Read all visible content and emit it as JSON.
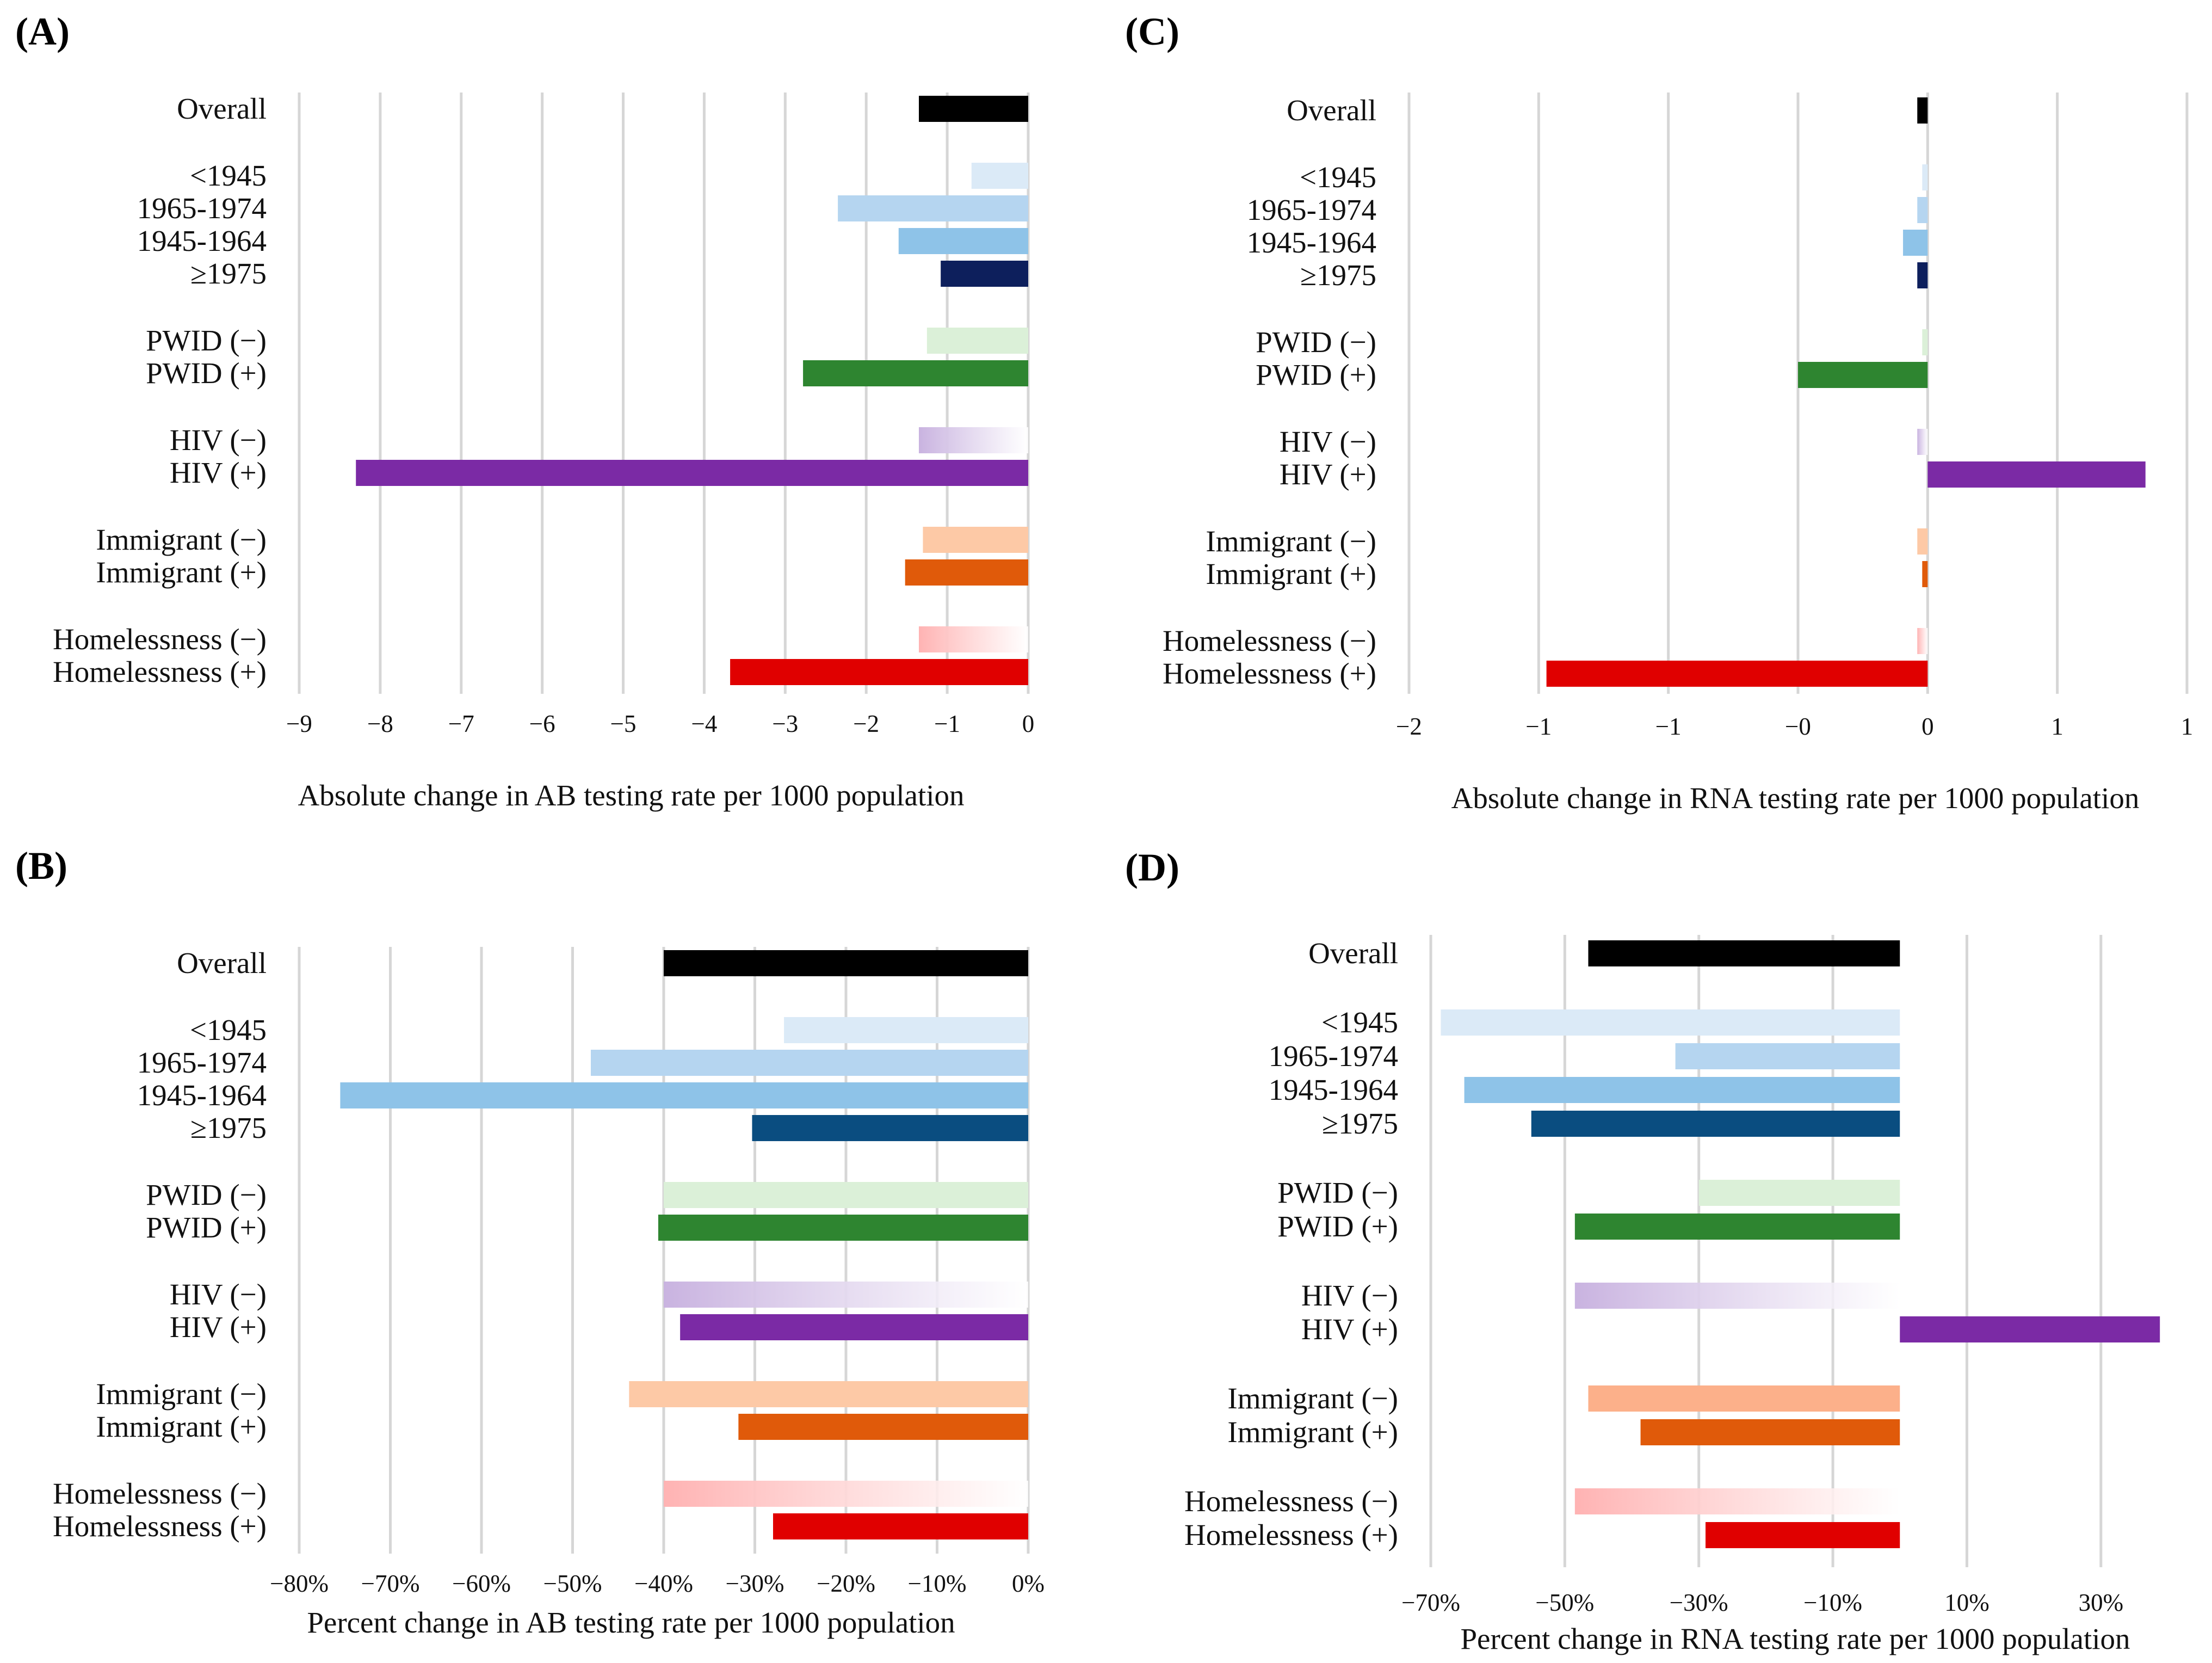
{
  "figure": {
    "panels": [
      {
        "id": "A",
        "label": "(A)"
      },
      {
        "id": "B",
        "label": "(B)"
      },
      {
        "id": "C",
        "label": "(C)"
      },
      {
        "id": "D",
        "label": "(D)"
      }
    ]
  },
  "chart_data": [
    {
      "panel": "A",
      "type": "bar",
      "orientation": "horizontal",
      "xlabel": "Absolute change in AB testing rate per 1000 population",
      "xlim": [
        -9,
        0
      ],
      "ticks": [
        -9,
        -8,
        -7,
        -6,
        -5,
        -4,
        -3,
        -2,
        -1,
        0
      ],
      "tick_labels": [
        "−9",
        "−8",
        "−7",
        "−6",
        "−5",
        "−4",
        "−3",
        "−2",
        "−1",
        "0"
      ],
      "categories": [
        "Overall",
        "<1945",
        "1965-1974",
        "1945-1964",
        "≥1975",
        "PWID (−)",
        "PWID (+)",
        "HIV (−)",
        "HIV (+)",
        "Immigrant (−)",
        "Immigrant (+)",
        "Homelessness (−)",
        "Homelessness (+)"
      ],
      "groups": [
        1,
        4,
        2,
        2,
        2,
        2
      ],
      "values": [
        -1.35,
        -0.7,
        -2.35,
        -1.6,
        -1.08,
        -1.25,
        -2.78,
        -1.35,
        -8.3,
        -1.3,
        -1.52,
        -1.35,
        -3.68
      ],
      "colors": [
        "#000000",
        "#dbeaf7",
        "#b5d5f0",
        "#8ec3e8",
        "#0d1f5c",
        "#dbf0d8",
        "#2e8530",
        "#c9b3e0",
        "#7b2aa5",
        "#fdc9a6",
        "#e05a0a",
        "#ffb3b3",
        "#e00000"
      ],
      "gradient": [
        false,
        false,
        false,
        false,
        false,
        false,
        false,
        true,
        false,
        false,
        false,
        true,
        false
      ]
    },
    {
      "panel": "B",
      "type": "bar",
      "orientation": "horizontal",
      "xlabel": "Percent change in AB testing rate per 1000 population",
      "xlim": [
        -80,
        0
      ],
      "ticks": [
        -80,
        -70,
        -60,
        -50,
        -40,
        -30,
        -20,
        -10,
        0
      ],
      "tick_labels": [
        "−80%",
        "−70%",
        "−60%",
        "−50%",
        "−40%",
        "−30%",
        "−20%",
        "−10%",
        "0%"
      ],
      "categories": [
        "Overall",
        "<1945",
        "1965-1974",
        "1945-1964",
        "≥1975",
        "PWID (−)",
        "PWID (+)",
        "HIV (−)",
        "HIV (+)",
        "Immigrant (−)",
        "Immigrant (+)",
        "Homelessness (−)",
        "Homelessness (+)"
      ],
      "groups": [
        1,
        4,
        2,
        2,
        2,
        2
      ],
      "values": [
        -40,
        -26.8,
        -48,
        -75.5,
        -30.3,
        -40,
        -40.6,
        -40,
        -38.2,
        -43.8,
        -31.8,
        -40,
        -28
      ],
      "colors": [
        "#000000",
        "#dbeaf7",
        "#b5d5f0",
        "#8ec3e8",
        "#0a4d80",
        "#dbf0d8",
        "#2e8530",
        "#c9b3e0",
        "#7b2aa5",
        "#fdc9a6",
        "#e05a0a",
        "#ffb3b3",
        "#e00000"
      ],
      "gradient": [
        false,
        false,
        false,
        false,
        false,
        false,
        false,
        true,
        false,
        false,
        false,
        true,
        false
      ]
    },
    {
      "panel": "C",
      "type": "bar",
      "orientation": "horizontal",
      "xlabel": "Absolute change in RNA testing rate per 1000 population",
      "xlim": [
        -2,
        1
      ],
      "ticks": [
        -2,
        -1.5,
        -1,
        -0.5,
        0,
        0.5,
        1
      ],
      "tick_labels": [
        "−2",
        "−1",
        "−1",
        "−0",
        "0",
        "1",
        "1"
      ],
      "categories": [
        "Overall",
        "<1945",
        "1965-1974",
        "1945-1964",
        "≥1975",
        "PWID (−)",
        "PWID (+)",
        "HIV (−)",
        "HIV (+)",
        "Immigrant (−)",
        "Immigrant (+)",
        "Homelessness (−)",
        "Homelessness (+)"
      ],
      "groups": [
        1,
        4,
        2,
        2,
        2,
        2
      ],
      "values": [
        -0.04,
        -0.015,
        -0.04,
        -0.095,
        -0.04,
        -0.005,
        -0.5,
        -0.04,
        0.84,
        -0.04,
        -0.015,
        -0.04,
        -1.47
      ],
      "colors": [
        "#000000",
        "#dbeaf7",
        "#b5d5f0",
        "#8ec3e8",
        "#0d1f5c",
        "#dbf0d8",
        "#2e8530",
        "#c9b3e0",
        "#7b2aa5",
        "#fdc9a6",
        "#e05a0a",
        "#ffb3b3",
        "#e00000"
      ],
      "gradient": [
        false,
        false,
        false,
        false,
        false,
        false,
        false,
        true,
        false,
        false,
        false,
        true,
        false
      ]
    },
    {
      "panel": "D",
      "type": "bar",
      "orientation": "horizontal",
      "xlabel": "Percent change in RNA testing rate per 1000 population",
      "xlim": [
        -70,
        40
      ],
      "ticks": [
        -70,
        -50,
        -30,
        -10,
        10,
        30
      ],
      "tick_labels": [
        "−70%",
        "−50%",
        "−30%",
        "−10%",
        "10%",
        "30%"
      ],
      "categories": [
        "Overall",
        "<1945",
        "1965-1974",
        "1945-1964",
        "≥1975",
        "PWID (−)",
        "PWID (+)",
        "HIV (−)",
        "HIV (+)",
        "Immigrant (−)",
        "Immigrant (+)",
        "Homelessness (−)",
        "Homelessness (+)"
      ],
      "groups": [
        1,
        4,
        2,
        2,
        2,
        2
      ],
      "values": [
        -46.5,
        -68.5,
        -33.5,
        -65,
        -55,
        -30,
        -48.5,
        -48.5,
        38.8,
        -46.5,
        -38.7,
        -48.5,
        -29
      ],
      "colors": [
        "#000000",
        "#dbeaf7",
        "#b5d5f0",
        "#8ec3e8",
        "#0a4d80",
        "#dbf0d8",
        "#2e8530",
        "#c9b3e0",
        "#7b2aa5",
        "#fcb08a",
        "#e05a0a",
        "#ffb3b3",
        "#e00000"
      ],
      "gradient": [
        false,
        false,
        false,
        false,
        false,
        false,
        false,
        true,
        false,
        false,
        false,
        true,
        false
      ]
    }
  ]
}
